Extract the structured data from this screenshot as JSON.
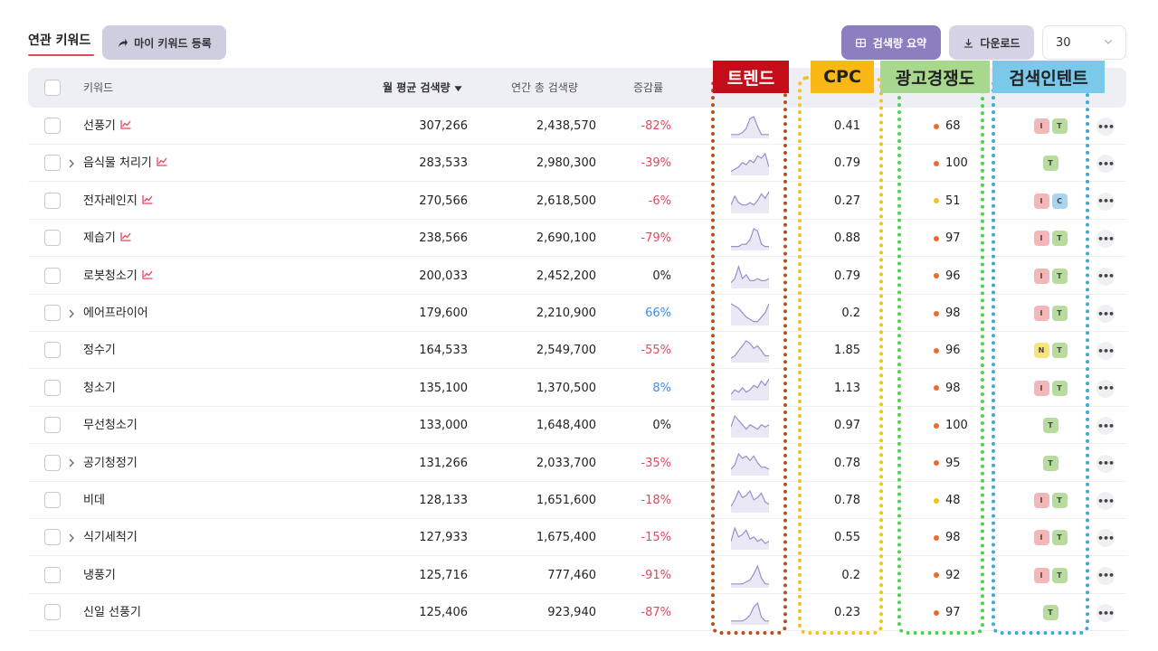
{
  "toolbar": {
    "tab_label": "연관 키워드",
    "my_keyword_label": "마이 키워드 등록",
    "summary_label": "검색량 요약",
    "download_label": "다운로드",
    "page_size": "30"
  },
  "columns": {
    "keyword": "키워드",
    "monthly": "월 평균 검색량",
    "yearly": "연간 총 검색량",
    "change": "증감률"
  },
  "annotations": {
    "trend": "트렌드",
    "cpc": "CPC",
    "competition": "광고경쟁도",
    "intent": "검색인텐트"
  },
  "colors": {
    "accent": "#e8455d",
    "primary": "#8b7fc0",
    "trend_box": "#b5501c",
    "cpc_box": "#f5c11a",
    "competition_box": "#4fd04f",
    "intent_box": "#3fa9d6"
  },
  "rows": [
    {
      "keyword": "선풍기",
      "expand": false,
      "trend_icon": true,
      "monthly": "307,266",
      "yearly": "2,438,570",
      "change": "-82%",
      "change_dir": -1,
      "cpc": "0.41",
      "comp": "68",
      "comp_color": "#f06a2c",
      "intents": [
        "I",
        "T"
      ],
      "spark": [
        1,
        1,
        1,
        2,
        4,
        9,
        10,
        5,
        1,
        1,
        1
      ]
    },
    {
      "keyword": "음식물 처리기",
      "expand": true,
      "trend_icon": true,
      "monthly": "283,533",
      "yearly": "2,980,300",
      "change": "-39%",
      "change_dir": -1,
      "cpc": "0.79",
      "comp": "100",
      "comp_color": "#f06a2c",
      "intents": [
        "T"
      ],
      "spark": [
        1,
        2,
        3,
        5,
        4,
        6,
        5,
        8,
        7,
        9,
        3
      ]
    },
    {
      "keyword": "전자레인지",
      "expand": false,
      "trend_icon": true,
      "monthly": "270,566",
      "yearly": "2,618,500",
      "change": "-6%",
      "change_dir": -1,
      "cpc": "0.27",
      "comp": "51",
      "comp_color": "#f5c11a",
      "intents": [
        "I",
        "C"
      ],
      "spark": [
        3,
        7,
        4,
        3,
        3,
        4,
        3,
        5,
        8,
        6,
        9
      ]
    },
    {
      "keyword": "제습기",
      "expand": false,
      "trend_icon": true,
      "monthly": "238,566",
      "yearly": "2,690,100",
      "change": "-79%",
      "change_dir": -1,
      "cpc": "0.88",
      "comp": "97",
      "comp_color": "#f06a2c",
      "intents": [
        "I",
        "T"
      ],
      "spark": [
        1,
        1,
        1,
        2,
        2,
        4,
        9,
        8,
        2,
        1,
        1
      ]
    },
    {
      "keyword": "로봇청소기",
      "expand": false,
      "trend_icon": true,
      "monthly": "200,033",
      "yearly": "2,452,200",
      "change": "0%",
      "change_dir": 0,
      "cpc": "0.79",
      "comp": "96",
      "comp_color": "#f06a2c",
      "intents": [
        "I",
        "T"
      ],
      "spark": [
        2,
        4,
        10,
        4,
        6,
        3,
        3,
        4,
        3,
        3,
        4
      ]
    },
    {
      "keyword": "에어프라이어",
      "expand": true,
      "trend_icon": false,
      "monthly": "179,600",
      "yearly": "2,210,900",
      "change": "66%",
      "change_dir": 1,
      "cpc": "0.2",
      "comp": "98",
      "comp_color": "#f06a2c",
      "intents": [
        "I",
        "T"
      ],
      "spark": [
        9,
        8,
        7,
        5,
        3,
        2,
        1,
        1,
        3,
        5,
        9
      ]
    },
    {
      "keyword": "정수기",
      "expand": false,
      "trend_icon": false,
      "monthly": "164,533",
      "yearly": "2,549,700",
      "change": "-55%",
      "change_dir": -1,
      "cpc": "1.85",
      "comp": "96",
      "comp_color": "#f06a2c",
      "intents": [
        "N",
        "T"
      ],
      "spark": [
        1,
        2,
        4,
        6,
        8,
        7,
        5,
        6,
        4,
        2,
        2
      ]
    },
    {
      "keyword": "청소기",
      "expand": false,
      "trend_icon": false,
      "monthly": "135,100",
      "yearly": "1,370,500",
      "change": "8%",
      "change_dir": 1,
      "cpc": "1.13",
      "comp": "98",
      "comp_color": "#f06a2c",
      "intents": [
        "I",
        "T"
      ],
      "spark": [
        2,
        4,
        3,
        5,
        3,
        4,
        6,
        5,
        8,
        6,
        9
      ]
    },
    {
      "keyword": "무선청소기",
      "expand": false,
      "trend_icon": false,
      "monthly": "133,000",
      "yearly": "1,648,400",
      "change": "0%",
      "change_dir": 0,
      "cpc": "0.97",
      "comp": "100",
      "comp_color": "#f06a2c",
      "intents": [
        "T"
      ],
      "spark": [
        4,
        9,
        7,
        5,
        3,
        5,
        4,
        3,
        5,
        4,
        5
      ]
    },
    {
      "keyword": "공기청정기",
      "expand": true,
      "trend_icon": false,
      "monthly": "131,266",
      "yearly": "2,033,700",
      "change": "-35%",
      "change_dir": -1,
      "cpc": "0.78",
      "comp": "95",
      "comp_color": "#f06a2c",
      "intents": [
        "T"
      ],
      "spark": [
        2,
        4,
        9,
        7,
        8,
        6,
        8,
        5,
        3,
        3,
        2
      ]
    },
    {
      "keyword": "비데",
      "expand": false,
      "trend_icon": false,
      "monthly": "128,133",
      "yearly": "1,651,600",
      "change": "-18%",
      "change_dir": -1,
      "cpc": "0.78",
      "comp": "48",
      "comp_color": "#f5c11a",
      "intents": [
        "I",
        "T"
      ],
      "spark": [
        2,
        5,
        9,
        6,
        7,
        9,
        5,
        6,
        8,
        4,
        3
      ]
    },
    {
      "keyword": "식기세척기",
      "expand": true,
      "trend_icon": false,
      "monthly": "127,933",
      "yearly": "1,675,400",
      "change": "-15%",
      "change_dir": -1,
      "cpc": "0.55",
      "comp": "98",
      "comp_color": "#f06a2c",
      "intents": [
        "I",
        "T"
      ],
      "spark": [
        3,
        9,
        5,
        6,
        8,
        4,
        5,
        3,
        4,
        2,
        3
      ]
    },
    {
      "keyword": "냉풍기",
      "expand": false,
      "trend_icon": false,
      "monthly": "125,716",
      "yearly": "777,460",
      "change": "-91%",
      "change_dir": -1,
      "cpc": "0.2",
      "comp": "92",
      "comp_color": "#f06a2c",
      "intents": [
        "I",
        "T"
      ],
      "spark": [
        1,
        1,
        1,
        1,
        2,
        3,
        6,
        10,
        4,
        1,
        1
      ]
    },
    {
      "keyword": "신일 선풍기",
      "expand": false,
      "trend_icon": false,
      "monthly": "125,406",
      "yearly": "923,940",
      "change": "-87%",
      "change_dir": -1,
      "cpc": "0.23",
      "comp": "97",
      "comp_color": "#f06a2c",
      "intents": [
        "T"
      ],
      "spark": [
        1,
        1,
        1,
        1,
        2,
        4,
        8,
        10,
        3,
        1,
        1
      ]
    }
  ]
}
